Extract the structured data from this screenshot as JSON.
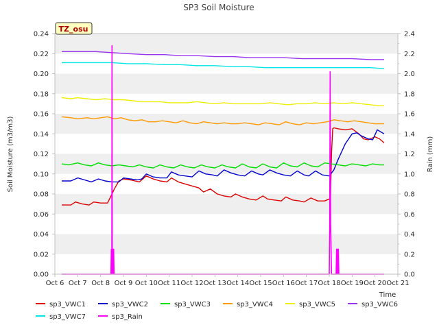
{
  "chart_data": {
    "type": "line",
    "title": "SP3 Soil Moisture",
    "ylabel": "Soil Moisture (m3/m3)",
    "y2label": "Rain (mm)",
    "xlabel": "Time",
    "badge": "TZ_osu",
    "ylim": [
      0,
      0.24
    ],
    "y2lim": [
      0,
      2.4
    ],
    "xlim": [
      6,
      21
    ],
    "x_ticks": [
      {
        "v": 6,
        "label": "Oct 6"
      },
      {
        "v": 7,
        "label": "Oct 7"
      },
      {
        "v": 8,
        "label": "Oct 8"
      },
      {
        "v": 9,
        "label": "Oct 9"
      },
      {
        "v": 10,
        "label": "Oct 10"
      },
      {
        "v": 11,
        "label": "Oct 11"
      },
      {
        "v": 12,
        "label": "Oct 12"
      },
      {
        "v": 13,
        "label": "Oct 13"
      },
      {
        "v": 14,
        "label": "Oct 14"
      },
      {
        "v": 15,
        "label": "Oct 15"
      },
      {
        "v": 16,
        "label": "Oct 16"
      },
      {
        "v": 17,
        "label": "Oct 17"
      },
      {
        "v": 18,
        "label": "Oct 18"
      },
      {
        "v": 19,
        "label": "Oct 19"
      },
      {
        "v": 20,
        "label": "Oct 20"
      },
      {
        "v": 21,
        "label": "Oct 21"
      }
    ],
    "y_ticks": [
      {
        "v": 0.0,
        "label": "0.00"
      },
      {
        "v": 0.02,
        "label": "0.02"
      },
      {
        "v": 0.04,
        "label": "0.04"
      },
      {
        "v": 0.06,
        "label": "0.06"
      },
      {
        "v": 0.08,
        "label": "0.08"
      },
      {
        "v": 0.1,
        "label": "0.10"
      },
      {
        "v": 0.12,
        "label": "0.12"
      },
      {
        "v": 0.14,
        "label": "0.14"
      },
      {
        "v": 0.16,
        "label": "0.16"
      },
      {
        "v": 0.18,
        "label": "0.18"
      },
      {
        "v": 0.2,
        "label": "0.20"
      },
      {
        "v": 0.22,
        "label": "0.22"
      },
      {
        "v": 0.24,
        "label": "0.24"
      }
    ],
    "y2_ticks": [
      {
        "v": 0.0,
        "label": "0.0"
      },
      {
        "v": 0.2,
        "label": "0.2"
      },
      {
        "v": 0.4,
        "label": "0.4"
      },
      {
        "v": 0.6,
        "label": "0.6"
      },
      {
        "v": 0.8,
        "label": "0.8"
      },
      {
        "v": 1.0,
        "label": "1.0"
      },
      {
        "v": 1.2,
        "label": "1.2"
      },
      {
        "v": 1.4,
        "label": "1.4"
      },
      {
        "v": 1.6,
        "label": "1.6"
      },
      {
        "v": 1.8,
        "label": "1.8"
      },
      {
        "v": 2.0,
        "label": "2.0"
      },
      {
        "v": 2.2,
        "label": "2.2"
      },
      {
        "v": 2.4,
        "label": "2.4"
      }
    ],
    "grid": "horizontal bands",
    "legend_placement": "below",
    "series": [
      {
        "name": "sp3_VWC1",
        "color": "#dd0000",
        "axis": "left",
        "x": [
          6.3,
          6.7,
          6.9,
          7.2,
          7.5,
          7.7,
          8.0,
          8.3,
          8.5,
          8.6,
          8.8,
          9.0,
          9.3,
          9.5,
          9.7,
          10.0,
          10.3,
          10.6,
          10.9,
          11.1,
          11.4,
          11.7,
          12.0,
          12.3,
          12.5,
          12.8,
          13.1,
          13.4,
          13.7,
          13.9,
          14.2,
          14.5,
          14.8,
          15.1,
          15.3,
          15.6,
          15.9,
          16.1,
          16.4,
          16.7,
          16.9,
          17.2,
          17.5,
          17.8,
          18.0,
          18.05,
          18.1,
          18.15,
          18.2,
          18.4,
          18.7,
          19.0,
          19.3,
          19.5,
          19.7,
          20.0,
          20.2,
          20.4
        ],
        "y": [
          0.069,
          0.069,
          0.072,
          0.07,
          0.069,
          0.072,
          0.071,
          0.071,
          0.08,
          0.085,
          0.093,
          0.095,
          0.094,
          0.093,
          0.092,
          0.098,
          0.095,
          0.093,
          0.092,
          0.096,
          0.092,
          0.09,
          0.088,
          0.086,
          0.082,
          0.085,
          0.08,
          0.078,
          0.077,
          0.08,
          0.077,
          0.075,
          0.074,
          0.078,
          0.075,
          0.074,
          0.073,
          0.077,
          0.074,
          0.073,
          0.072,
          0.076,
          0.073,
          0.073,
          0.075,
          0.074,
          0.12,
          0.145,
          0.146,
          0.145,
          0.144,
          0.145,
          0.14,
          0.135,
          0.134,
          0.137,
          0.135,
          0.131
        ]
      },
      {
        "name": "sp3_VWC2",
        "color": "#0000cc",
        "axis": "left",
        "x": [
          6.3,
          6.7,
          7.0,
          7.3,
          7.6,
          7.9,
          8.2,
          8.5,
          8.8,
          9.0,
          9.3,
          9.6,
          9.8,
          10.0,
          10.3,
          10.6,
          10.9,
          11.1,
          11.4,
          11.7,
          12.0,
          12.3,
          12.6,
          12.9,
          13.1,
          13.4,
          13.7,
          14.0,
          14.3,
          14.6,
          14.9,
          15.1,
          15.4,
          15.7,
          16.0,
          16.3,
          16.6,
          16.9,
          17.1,
          17.4,
          17.7,
          18.0,
          18.2,
          18.4,
          18.7,
          19.0,
          19.2,
          19.4,
          19.7,
          19.9,
          20.1,
          20.4
        ],
        "y": [
          0.093,
          0.093,
          0.096,
          0.094,
          0.092,
          0.095,
          0.093,
          0.092,
          0.092,
          0.096,
          0.095,
          0.094,
          0.095,
          0.1,
          0.097,
          0.096,
          0.096,
          0.102,
          0.099,
          0.098,
          0.097,
          0.103,
          0.1,
          0.099,
          0.098,
          0.104,
          0.101,
          0.099,
          0.098,
          0.103,
          0.1,
          0.099,
          0.104,
          0.101,
          0.099,
          0.098,
          0.103,
          0.099,
          0.098,
          0.103,
          0.099,
          0.098,
          0.104,
          0.115,
          0.13,
          0.14,
          0.141,
          0.138,
          0.135,
          0.134,
          0.144,
          0.14
        ]
      },
      {
        "name": "sp3_VWC3",
        "color": "#00dd00",
        "axis": "left",
        "x": [
          6.3,
          6.6,
          7.0,
          7.3,
          7.6,
          7.9,
          8.2,
          8.5,
          8.8,
          9.1,
          9.4,
          9.7,
          10.0,
          10.3,
          10.6,
          10.9,
          11.2,
          11.5,
          11.8,
          12.1,
          12.4,
          12.7,
          13.0,
          13.3,
          13.6,
          13.9,
          14.2,
          14.5,
          14.8,
          15.1,
          15.4,
          15.7,
          16.0,
          16.3,
          16.6,
          16.9,
          17.2,
          17.5,
          17.8,
          18.1,
          18.4,
          18.7,
          19.0,
          19.3,
          19.6,
          19.9,
          20.2,
          20.4
        ],
        "y": [
          0.11,
          0.109,
          0.111,
          0.109,
          0.108,
          0.111,
          0.109,
          0.108,
          0.109,
          0.108,
          0.107,
          0.109,
          0.107,
          0.106,
          0.109,
          0.107,
          0.106,
          0.109,
          0.107,
          0.106,
          0.109,
          0.107,
          0.106,
          0.109,
          0.107,
          0.106,
          0.11,
          0.107,
          0.106,
          0.11,
          0.107,
          0.106,
          0.111,
          0.108,
          0.107,
          0.111,
          0.108,
          0.107,
          0.111,
          0.11,
          0.109,
          0.108,
          0.11,
          0.109,
          0.108,
          0.11,
          0.109,
          0.109
        ]
      },
      {
        "name": "sp3_VWC4",
        "color": "#ff9900",
        "axis": "left",
        "x": [
          6.3,
          6.7,
          7.0,
          7.4,
          7.7,
          8.0,
          8.3,
          8.6,
          8.9,
          9.2,
          9.5,
          9.8,
          10.1,
          10.4,
          10.7,
          11.0,
          11.3,
          11.6,
          11.9,
          12.2,
          12.5,
          12.8,
          13.1,
          13.4,
          13.7,
          14.0,
          14.3,
          14.6,
          14.9,
          15.2,
          15.5,
          15.8,
          16.1,
          16.4,
          16.7,
          17.0,
          17.3,
          17.6,
          17.9,
          18.2,
          18.5,
          18.8,
          19.1,
          19.4,
          19.7,
          20.0,
          20.4
        ],
        "y": [
          0.157,
          0.156,
          0.155,
          0.156,
          0.155,
          0.156,
          0.157,
          0.155,
          0.156,
          0.154,
          0.153,
          0.154,
          0.152,
          0.152,
          0.153,
          0.152,
          0.151,
          0.153,
          0.151,
          0.15,
          0.152,
          0.151,
          0.15,
          0.151,
          0.15,
          0.15,
          0.151,
          0.15,
          0.149,
          0.151,
          0.15,
          0.149,
          0.152,
          0.15,
          0.149,
          0.151,
          0.15,
          0.151,
          0.152,
          0.154,
          0.153,
          0.152,
          0.153,
          0.152,
          0.151,
          0.15,
          0.15
        ]
      },
      {
        "name": "sp3_VWC5",
        "color": "#eeee00",
        "axis": "left",
        "x": [
          6.3,
          6.7,
          7.0,
          7.4,
          7.8,
          8.2,
          8.6,
          9.0,
          9.4,
          9.8,
          10.2,
          10.6,
          11.0,
          11.4,
          11.8,
          12.2,
          12.6,
          13.0,
          13.4,
          13.8,
          14.2,
          14.6,
          15.0,
          15.4,
          15.8,
          16.2,
          16.6,
          17.0,
          17.4,
          17.8,
          18.2,
          18.6,
          19.0,
          19.4,
          19.8,
          20.2,
          20.4
        ],
        "y": [
          0.176,
          0.175,
          0.176,
          0.175,
          0.174,
          0.175,
          0.174,
          0.174,
          0.173,
          0.172,
          0.172,
          0.172,
          0.171,
          0.171,
          0.171,
          0.172,
          0.171,
          0.17,
          0.171,
          0.17,
          0.17,
          0.17,
          0.17,
          0.171,
          0.17,
          0.169,
          0.17,
          0.17,
          0.171,
          0.17,
          0.171,
          0.17,
          0.171,
          0.17,
          0.169,
          0.168,
          0.168
        ]
      },
      {
        "name": "sp3_VWC6",
        "color": "#9933ee",
        "axis": "left",
        "x": [
          6.3,
          7.0,
          7.8,
          8.5,
          9.2,
          10.0,
          10.8,
          11.5,
          12.2,
          13.0,
          13.8,
          14.5,
          15.2,
          16.0,
          16.8,
          17.5,
          18.2,
          19.0,
          19.8,
          20.4
        ],
        "y": [
          0.222,
          0.222,
          0.222,
          0.221,
          0.22,
          0.219,
          0.219,
          0.218,
          0.218,
          0.217,
          0.217,
          0.216,
          0.216,
          0.216,
          0.215,
          0.215,
          0.215,
          0.215,
          0.214,
          0.214
        ]
      },
      {
        "name": "sp3_VWC7",
        "color": "#00e5e5",
        "axis": "left",
        "x": [
          6.3,
          7.0,
          7.8,
          8.5,
          9.2,
          10.0,
          10.8,
          11.5,
          12.2,
          13.0,
          13.8,
          14.5,
          15.2,
          16.0,
          16.8,
          17.5,
          18.2,
          19.0,
          19.8,
          20.4
        ],
        "y": [
          0.211,
          0.211,
          0.211,
          0.211,
          0.21,
          0.21,
          0.209,
          0.209,
          0.208,
          0.208,
          0.207,
          0.207,
          0.206,
          0.206,
          0.206,
          0.206,
          0.206,
          0.206,
          0.206,
          0.205
        ]
      },
      {
        "name": "sp3_Rain",
        "color": "#ff00ff",
        "axis": "right",
        "x": [
          6.3,
          8.45,
          8.47,
          8.49,
          8.5,
          8.51,
          8.53,
          8.55,
          8.57,
          8.59,
          8.61,
          8.63,
          17.95,
          18.0,
          18.02,
          18.04,
          18.06,
          18.08,
          18.1,
          18.12,
          18.14,
          18.3,
          18.32,
          18.34,
          18.36,
          18.38,
          18.4,
          18.42,
          18.44,
          18.46,
          18.48,
          18.5,
          20.4
        ],
        "y": [
          0.0,
          0.0,
          0.25,
          0.0,
          2.28,
          0.0,
          0.25,
          0.0,
          0.25,
          0.0,
          0.0,
          0.0,
          0.0,
          0.0,
          0.5,
          2.02,
          0.5,
          0.25,
          0.0,
          0.0,
          0.0,
          0.0,
          0.25,
          0.0,
          0.25,
          0.0,
          0.25,
          0.0,
          0.0,
          0.0,
          0.0,
          0.0,
          0.0
        ]
      }
    ]
  }
}
